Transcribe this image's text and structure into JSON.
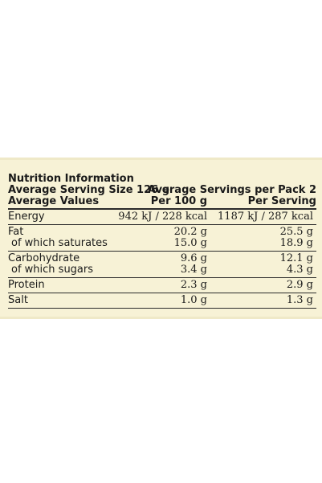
{
  "header": {
    "title": "Nutrition Information",
    "serving_size": "Average Serving Size 126 g",
    "servings_per_pack": "Average Servings per Pack 2",
    "average_values": "Average Values",
    "col_per100": "Per 100 g",
    "col_serving": "Per Serving"
  },
  "rows": [
    {
      "name": "Energy",
      "per100": "942 kJ / 228 kcal",
      "serving": "1187 kJ / 287 kcal"
    },
    {
      "name": "Fat",
      "per100": "20.2 g",
      "serving": "25.5 g"
    },
    {
      "name": "of which saturates",
      "per100": "15.0 g",
      "serving": "18.9 g"
    },
    {
      "name": "Carbohydrate",
      "per100": "9.6 g",
      "serving": "12.1 g"
    },
    {
      "name": "of which sugars",
      "per100": "3.4 g",
      "serving": "4.3 g"
    },
    {
      "name": "Protein",
      "per100": "2.3 g",
      "serving": "2.9 g"
    },
    {
      "name": "Salt",
      "per100": "1.0 g",
      "serving": "1.3 g"
    }
  ],
  "colors": {
    "panel": "#f7f2d6",
    "text": "#1a1a1a"
  }
}
